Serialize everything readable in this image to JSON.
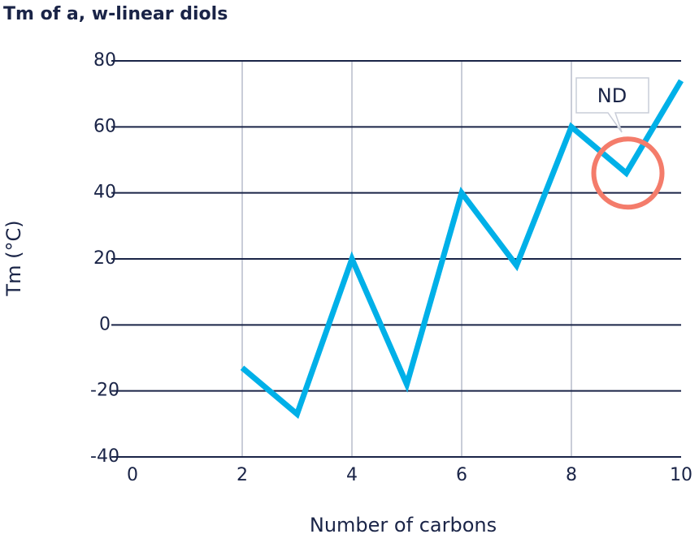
{
  "chart_data": {
    "type": "line",
    "title": "Tm of a, w-linear diols",
    "x_label": "Number of carbons",
    "y_label": "Tm (°C)",
    "x": [
      2,
      3,
      4,
      5,
      6,
      7,
      8,
      9,
      10
    ],
    "series": [
      {
        "name": "Tm",
        "color": "#00b0e8",
        "values": [
          -13,
          -27,
          20,
          -18,
          40,
          18,
          60,
          46,
          74
        ]
      }
    ],
    "xlim": [
      0,
      10
    ],
    "xticks": [
      0,
      2,
      4,
      6,
      8,
      10
    ],
    "ylim": [
      -40,
      80
    ],
    "yticks": [
      -40,
      -20,
      0,
      20,
      40,
      60,
      80
    ],
    "grid": true,
    "annotation": "ND"
  }
}
